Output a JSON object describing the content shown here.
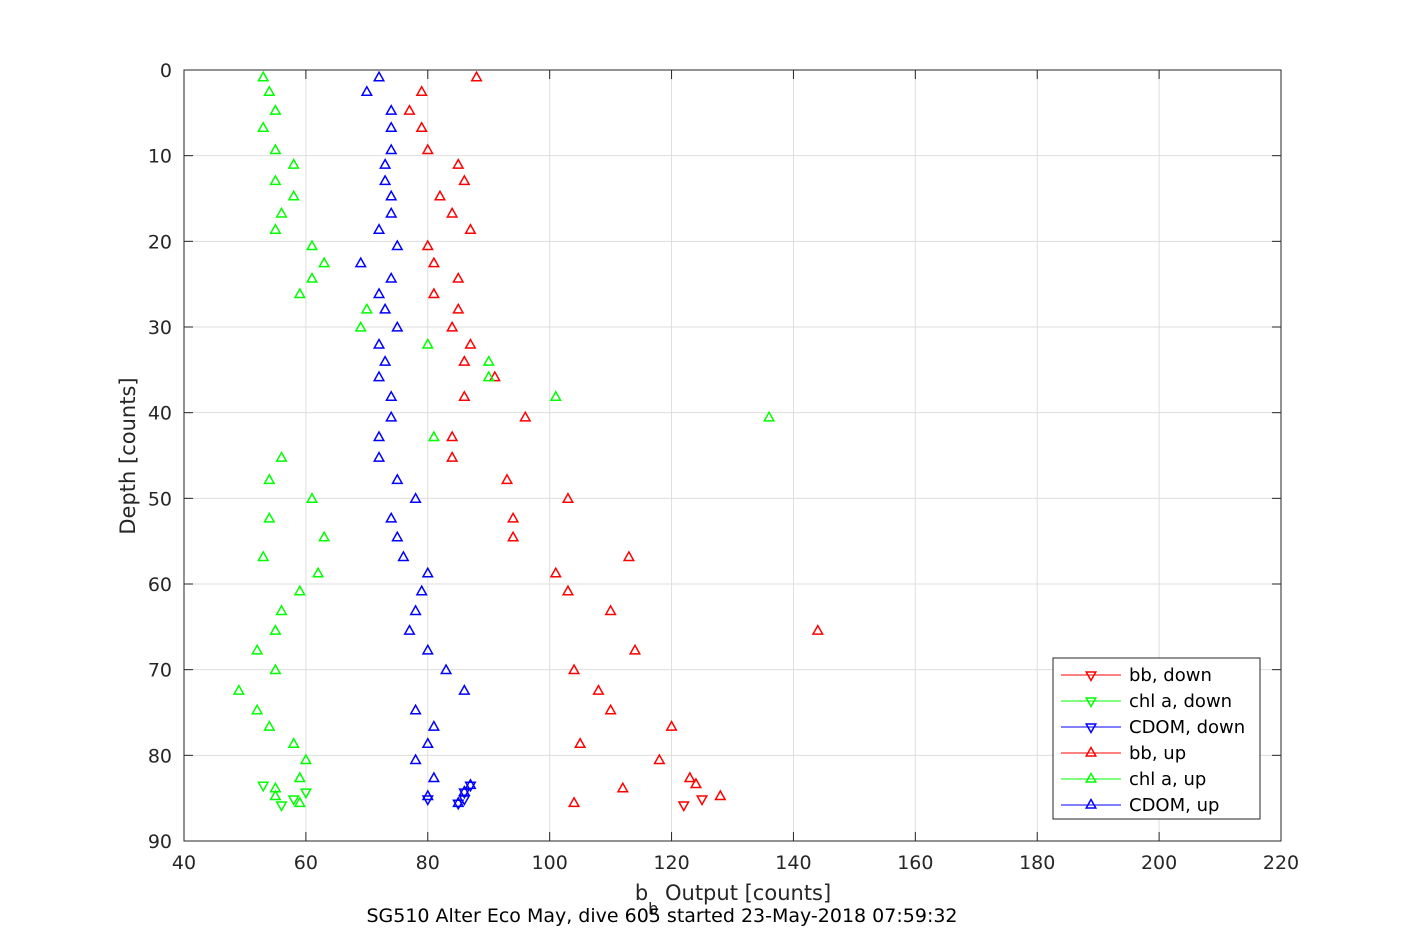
{
  "caption": "SG510 Alter Eco May, dive 605 started 23-May-2018 07:59:32",
  "chart_data": {
    "type": "scatter",
    "xlabel_main": "b",
    "xlabel_sub": "b",
    "xlabel_rest": " Output [counts]",
    "ylabel": "Depth [counts]",
    "xlim": [
      40,
      220
    ],
    "ylim": [
      0,
      90
    ],
    "y_reversed": true,
    "grid": true,
    "legend_position": "bottom-right",
    "x_ticks": [
      40,
      60,
      80,
      100,
      120,
      140,
      160,
      180,
      200,
      220
    ],
    "y_ticks": [
      0,
      10,
      20,
      30,
      40,
      50,
      60,
      70,
      80,
      90
    ],
    "series": [
      {
        "name": "bb, down",
        "color": "#ff0000",
        "marker": "down",
        "points": [
          [
            122,
            85.8
          ],
          [
            125,
            85.1
          ]
        ]
      },
      {
        "name": "chl a, down",
        "color": "#00ff00",
        "marker": "down",
        "points": [
          [
            53,
            83.5
          ],
          [
            56,
            85.8
          ],
          [
            58,
            85.1
          ],
          [
            60,
            84.3
          ]
        ]
      },
      {
        "name": "CDOM, down",
        "color": "#0000ff",
        "marker": "down",
        "points": [
          [
            87,
            83.5
          ],
          [
            86,
            84.3
          ],
          [
            86,
            85.1
          ],
          [
            80,
            85.1
          ],
          [
            85,
            85.6
          ]
        ]
      },
      {
        "name": "bb, up",
        "color": "#ff0000",
        "marker": "up",
        "points": [
          [
            88,
            0.9
          ],
          [
            79,
            2.6
          ],
          [
            77,
            4.8
          ],
          [
            79,
            6.8
          ],
          [
            80,
            9.4
          ],
          [
            85,
            11.1
          ],
          [
            86,
            13.0
          ],
          [
            82,
            14.8
          ],
          [
            84,
            16.8
          ],
          [
            87,
            18.7
          ],
          [
            80,
            20.6
          ],
          [
            81,
            22.6
          ],
          [
            85,
            24.4
          ],
          [
            81,
            26.2
          ],
          [
            85,
            28.0
          ],
          [
            84,
            30.1
          ],
          [
            87,
            32.1
          ],
          [
            86,
            34.1
          ],
          [
            91,
            35.9
          ],
          [
            86,
            38.2
          ],
          [
            96,
            40.6
          ],
          [
            84,
            42.9
          ],
          [
            84,
            45.3
          ],
          [
            93,
            47.9
          ],
          [
            103,
            50.1
          ],
          [
            94,
            52.4
          ],
          [
            94,
            54.6
          ],
          [
            113,
            56.9
          ],
          [
            101,
            58.8
          ],
          [
            103,
            60.9
          ],
          [
            110,
            63.2
          ],
          [
            144,
            65.5
          ],
          [
            114,
            67.8
          ],
          [
            104,
            70.1
          ],
          [
            108,
            72.5
          ],
          [
            110,
            74.8
          ],
          [
            120,
            76.7
          ],
          [
            105,
            78.7
          ],
          [
            118,
            80.6
          ],
          [
            123,
            82.7
          ],
          [
            124,
            83.4
          ],
          [
            112,
            83.9
          ],
          [
            128,
            84.8
          ],
          [
            104,
            85.6
          ]
        ]
      },
      {
        "name": "chl a, up",
        "color": "#00ff00",
        "marker": "up",
        "points": [
          [
            53,
            0.9
          ],
          [
            54,
            2.6
          ],
          [
            55,
            4.8
          ],
          [
            53,
            6.8
          ],
          [
            55,
            9.4
          ],
          [
            58,
            11.1
          ],
          [
            55,
            13.0
          ],
          [
            58,
            14.8
          ],
          [
            56,
            16.8
          ],
          [
            55,
            18.7
          ],
          [
            61,
            20.6
          ],
          [
            63,
            22.6
          ],
          [
            61,
            24.4
          ],
          [
            59,
            26.2
          ],
          [
            70,
            28.0
          ],
          [
            69,
            30.1
          ],
          [
            80,
            32.1
          ],
          [
            90,
            34.1
          ],
          [
            90,
            35.9
          ],
          [
            101,
            38.2
          ],
          [
            136,
            40.6
          ],
          [
            81,
            42.9
          ],
          [
            56,
            45.3
          ],
          [
            54,
            47.9
          ],
          [
            61,
            50.1
          ],
          [
            54,
            52.4
          ],
          [
            63,
            54.6
          ],
          [
            53,
            56.9
          ],
          [
            62,
            58.8
          ],
          [
            59,
            60.9
          ],
          [
            56,
            63.2
          ],
          [
            55,
            65.5
          ],
          [
            52,
            67.8
          ],
          [
            55,
            70.1
          ],
          [
            49,
            72.5
          ],
          [
            52,
            74.8
          ],
          [
            54,
            76.7
          ],
          [
            58,
            78.7
          ],
          [
            60,
            80.6
          ],
          [
            59,
            82.7
          ],
          [
            55,
            83.9
          ],
          [
            55,
            84.8
          ],
          [
            59,
            85.6
          ]
        ]
      },
      {
        "name": "CDOM, up",
        "color": "#0000ff",
        "marker": "up",
        "points": [
          [
            72,
            0.9
          ],
          [
            70,
            2.6
          ],
          [
            74,
            4.8
          ],
          [
            74,
            6.8
          ],
          [
            74,
            9.4
          ],
          [
            73,
            11.1
          ],
          [
            73,
            13.0
          ],
          [
            74,
            14.8
          ],
          [
            74,
            16.8
          ],
          [
            72,
            18.7
          ],
          [
            75,
            20.6
          ],
          [
            69,
            22.6
          ],
          [
            74,
            24.4
          ],
          [
            72,
            26.2
          ],
          [
            73,
            28.0
          ],
          [
            75,
            30.1
          ],
          [
            72,
            32.1
          ],
          [
            73,
            34.1
          ],
          [
            72,
            35.9
          ],
          [
            74,
            38.2
          ],
          [
            74,
            40.6
          ],
          [
            72,
            42.9
          ],
          [
            72,
            45.3
          ],
          [
            75,
            47.9
          ],
          [
            78,
            50.1
          ],
          [
            74,
            52.4
          ],
          [
            75,
            54.6
          ],
          [
            76,
            56.9
          ],
          [
            80,
            58.8
          ],
          [
            79,
            60.9
          ],
          [
            78,
            63.2
          ],
          [
            77,
            65.5
          ],
          [
            80,
            67.8
          ],
          [
            83,
            70.1
          ],
          [
            86,
            72.5
          ],
          [
            78,
            74.8
          ],
          [
            81,
            76.7
          ],
          [
            80,
            78.7
          ],
          [
            78,
            80.6
          ],
          [
            81,
            82.7
          ],
          [
            87,
            83.5
          ],
          [
            86,
            84.3
          ],
          [
            80,
            84.8
          ],
          [
            85,
            85.6
          ]
        ]
      }
    ]
  }
}
